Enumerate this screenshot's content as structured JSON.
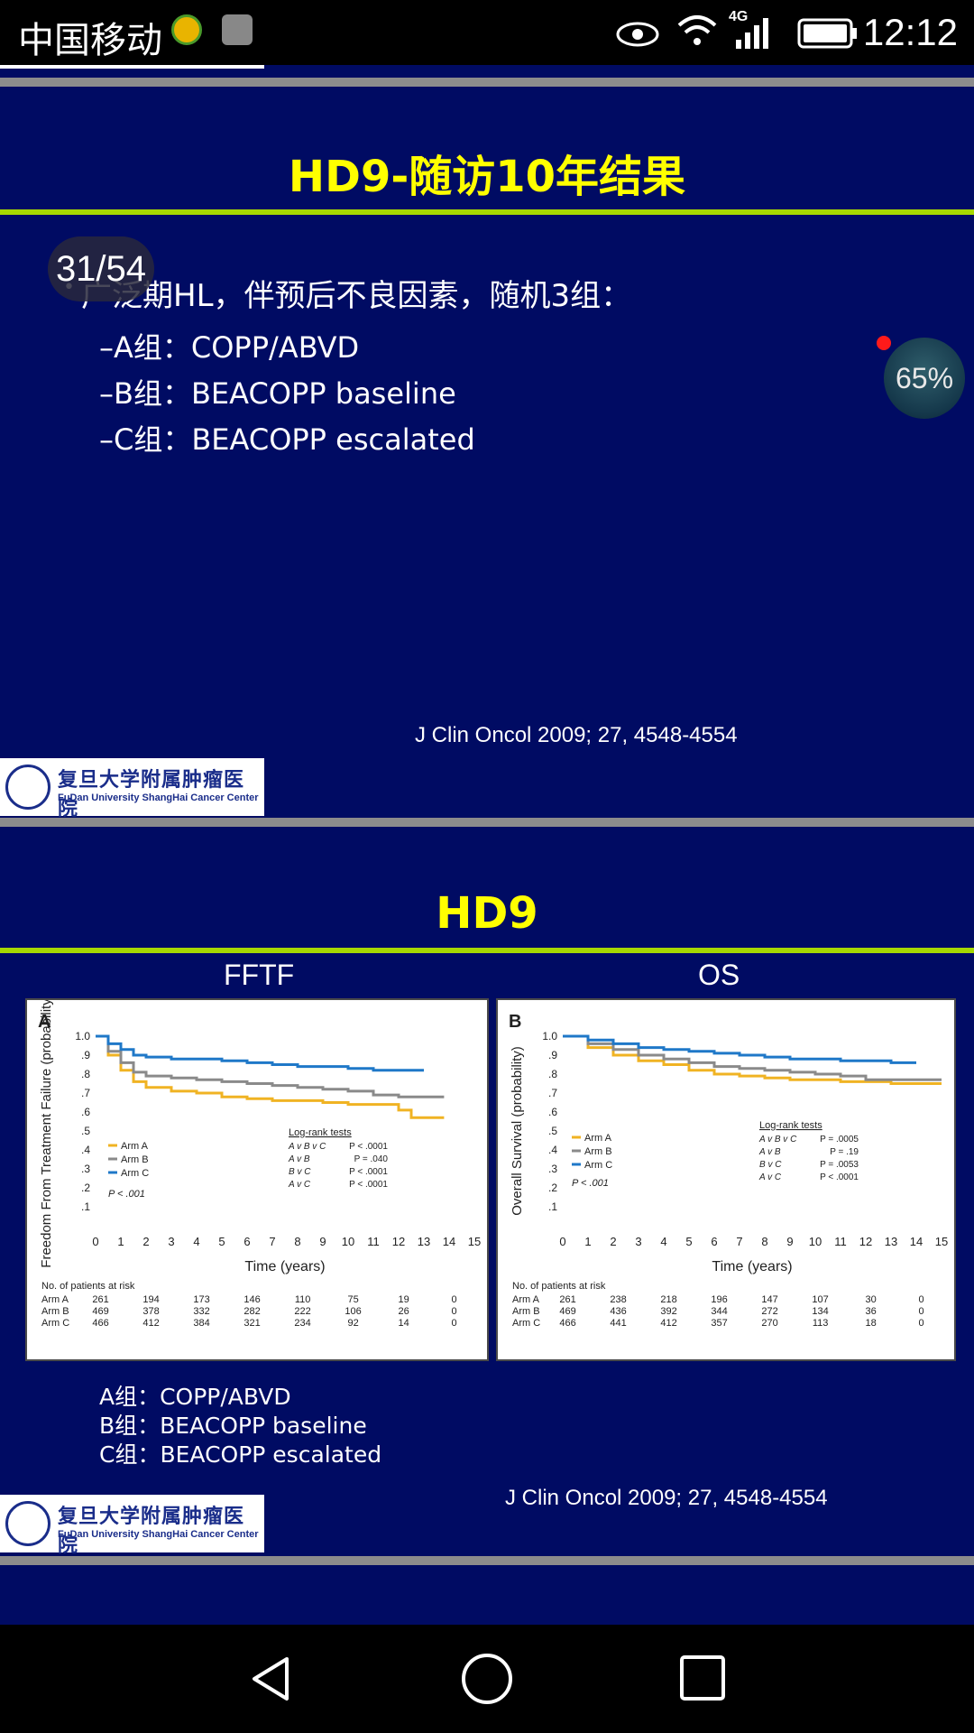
{
  "status_bar": {
    "carrier": "中国移动",
    "network": "4G",
    "time": "12:12"
  },
  "viewer": {
    "page_counter": "31/54",
    "zoom": "65%"
  },
  "slide1": {
    "title": "HD9-随访10年结果",
    "bullet": "广泛期HL，伴预后不良因素，随机3组：",
    "bullet_marker": "•",
    "arms": [
      "–A组：COPP/ABVD",
      "–B组：BEACOPP baseline",
      "–C组：BEACOPP escalated"
    ],
    "citation": "J Clin Oncol 2009; 27, 4548-4554"
  },
  "logo": {
    "cn": "复旦大学附属肿瘤医院",
    "en": "FuDan University ShangHai Cancer Center"
  },
  "slide2": {
    "title": "HD9",
    "left_label": "FFTF",
    "right_label": "OS",
    "arms": [
      "A组：COPP/ABVD",
      "B组：BEACOPP baseline",
      "C组：BEACOPP escalated"
    ],
    "citation": "J Clin Oncol 2009; 27, 4548-4554"
  },
  "colors": {
    "arm_a": "#f0b323",
    "arm_b": "#8a8a8a",
    "arm_c": "#1f78c8",
    "slide_bg": "#000b63",
    "title": "#ffff00",
    "rule": "#a6d800"
  },
  "chart_data": [
    {
      "type": "line",
      "panel": "A",
      "ylabel": "Freedom From Treatment Failure (probability)",
      "xlabel": "Time (years)",
      "xlim": [
        0,
        15
      ],
      "ylim": [
        0,
        1.0
      ],
      "x_ticks": [
        0,
        1,
        2,
        3,
        4,
        5,
        6,
        7,
        8,
        9,
        10,
        11,
        12,
        13,
        14,
        15
      ],
      "y_ticks": [
        ".1",
        ".2",
        ".3",
        ".4",
        ".5",
        ".6",
        ".7",
        ".8",
        ".9",
        "1.0"
      ],
      "series": [
        {
          "name": "Arm A",
          "x": [
            0,
            0.5,
            1,
            1.5,
            2,
            3,
            4,
            5,
            6,
            7,
            8,
            9,
            10,
            11,
            12,
            12.5,
            13,
            13.8
          ],
          "y": [
            1.0,
            0.9,
            0.82,
            0.76,
            0.73,
            0.71,
            0.7,
            0.68,
            0.67,
            0.66,
            0.66,
            0.65,
            0.64,
            0.64,
            0.61,
            0.57,
            0.57,
            0.57
          ]
        },
        {
          "name": "Arm B",
          "x": [
            0,
            0.5,
            1,
            1.5,
            2,
            3,
            4,
            5,
            6,
            7,
            8,
            9,
            10,
            11,
            12,
            13,
            13.8
          ],
          "y": [
            1.0,
            0.92,
            0.86,
            0.81,
            0.79,
            0.78,
            0.77,
            0.76,
            0.75,
            0.74,
            0.73,
            0.72,
            0.71,
            0.69,
            0.68,
            0.68,
            0.68
          ]
        },
        {
          "name": "Arm C",
          "x": [
            0,
            0.5,
            1,
            1.5,
            2,
            3,
            4,
            5,
            6,
            7,
            8,
            9,
            10,
            11,
            12,
            13
          ],
          "y": [
            1.0,
            0.96,
            0.93,
            0.9,
            0.89,
            0.88,
            0.88,
            0.87,
            0.86,
            0.85,
            0.84,
            0.84,
            0.83,
            0.82,
            0.82,
            0.82
          ]
        }
      ],
      "legend": [
        "Arm A",
        "Arm B",
        "Arm C"
      ],
      "p_overall": "P < .001",
      "logrank_title": "Log-rank tests",
      "logrank": [
        [
          "A v B v C",
          "P < .0001"
        ],
        [
          "A v B",
          "P = .040"
        ],
        [
          "B v C",
          "P < .0001"
        ],
        [
          "A v C",
          "P < .0001"
        ]
      ],
      "risk_title": "No. of patients at risk",
      "risk": [
        {
          "arm": "Arm A",
          "counts": [
            "261",
            "194",
            "173",
            "146",
            "110",
            "75",
            "19",
            "0"
          ]
        },
        {
          "arm": "Arm B",
          "counts": [
            "469",
            "378",
            "332",
            "282",
            "222",
            "106",
            "26",
            "0"
          ]
        },
        {
          "arm": "Arm C",
          "counts": [
            "466",
            "412",
            "384",
            "321",
            "234",
            "92",
            "14",
            "0"
          ]
        }
      ]
    },
    {
      "type": "line",
      "panel": "B",
      "ylabel": "Overall Survival (probability)",
      "xlabel": "Time (years)",
      "xlim": [
        0,
        15
      ],
      "ylim": [
        0,
        1.0
      ],
      "x_ticks": [
        0,
        1,
        2,
        3,
        4,
        5,
        6,
        7,
        8,
        9,
        10,
        11,
        12,
        13,
        14,
        15
      ],
      "y_ticks": [
        ".1",
        ".2",
        ".3",
        ".4",
        ".5",
        ".6",
        ".7",
        ".8",
        ".9",
        "1.0"
      ],
      "series": [
        {
          "name": "Arm A",
          "x": [
            0,
            1,
            2,
            3,
            4,
            5,
            6,
            7,
            8,
            9,
            10,
            11,
            12,
            13,
            14,
            15
          ],
          "y": [
            1.0,
            0.94,
            0.9,
            0.87,
            0.85,
            0.82,
            0.8,
            0.79,
            0.78,
            0.77,
            0.77,
            0.76,
            0.76,
            0.75,
            0.75,
            0.75
          ]
        },
        {
          "name": "Arm B",
          "x": [
            0,
            1,
            2,
            3,
            4,
            5,
            6,
            7,
            8,
            9,
            10,
            11,
            12,
            13,
            14,
            15
          ],
          "y": [
            1.0,
            0.96,
            0.93,
            0.9,
            0.88,
            0.86,
            0.84,
            0.83,
            0.82,
            0.81,
            0.8,
            0.79,
            0.77,
            0.77,
            0.77,
            0.77
          ]
        },
        {
          "name": "Arm C",
          "x": [
            0,
            1,
            2,
            3,
            4,
            5,
            6,
            7,
            8,
            9,
            10,
            11,
            12,
            13,
            14
          ],
          "y": [
            1.0,
            0.98,
            0.96,
            0.94,
            0.93,
            0.92,
            0.91,
            0.9,
            0.89,
            0.88,
            0.88,
            0.87,
            0.87,
            0.86,
            0.86
          ]
        }
      ],
      "legend": [
        "Arm A",
        "Arm B",
        "Arm C"
      ],
      "p_overall": "P < .001",
      "logrank_title": "Log-rank tests",
      "logrank": [
        [
          "A v B v C",
          "P = .0005"
        ],
        [
          "A v B",
          "P = .19"
        ],
        [
          "B v C",
          "P = .0053"
        ],
        [
          "A v C",
          "P < .0001"
        ]
      ],
      "risk_title": "No. of patients at risk",
      "risk": [
        {
          "arm": "Arm A",
          "counts": [
            "261",
            "238",
            "218",
            "196",
            "147",
            "107",
            "30",
            "0"
          ]
        },
        {
          "arm": "Arm B",
          "counts": [
            "469",
            "436",
            "392",
            "344",
            "272",
            "134",
            "36",
            "0"
          ]
        },
        {
          "arm": "Arm C",
          "counts": [
            "466",
            "441",
            "412",
            "357",
            "270",
            "113",
            "18",
            "0"
          ]
        }
      ]
    }
  ]
}
